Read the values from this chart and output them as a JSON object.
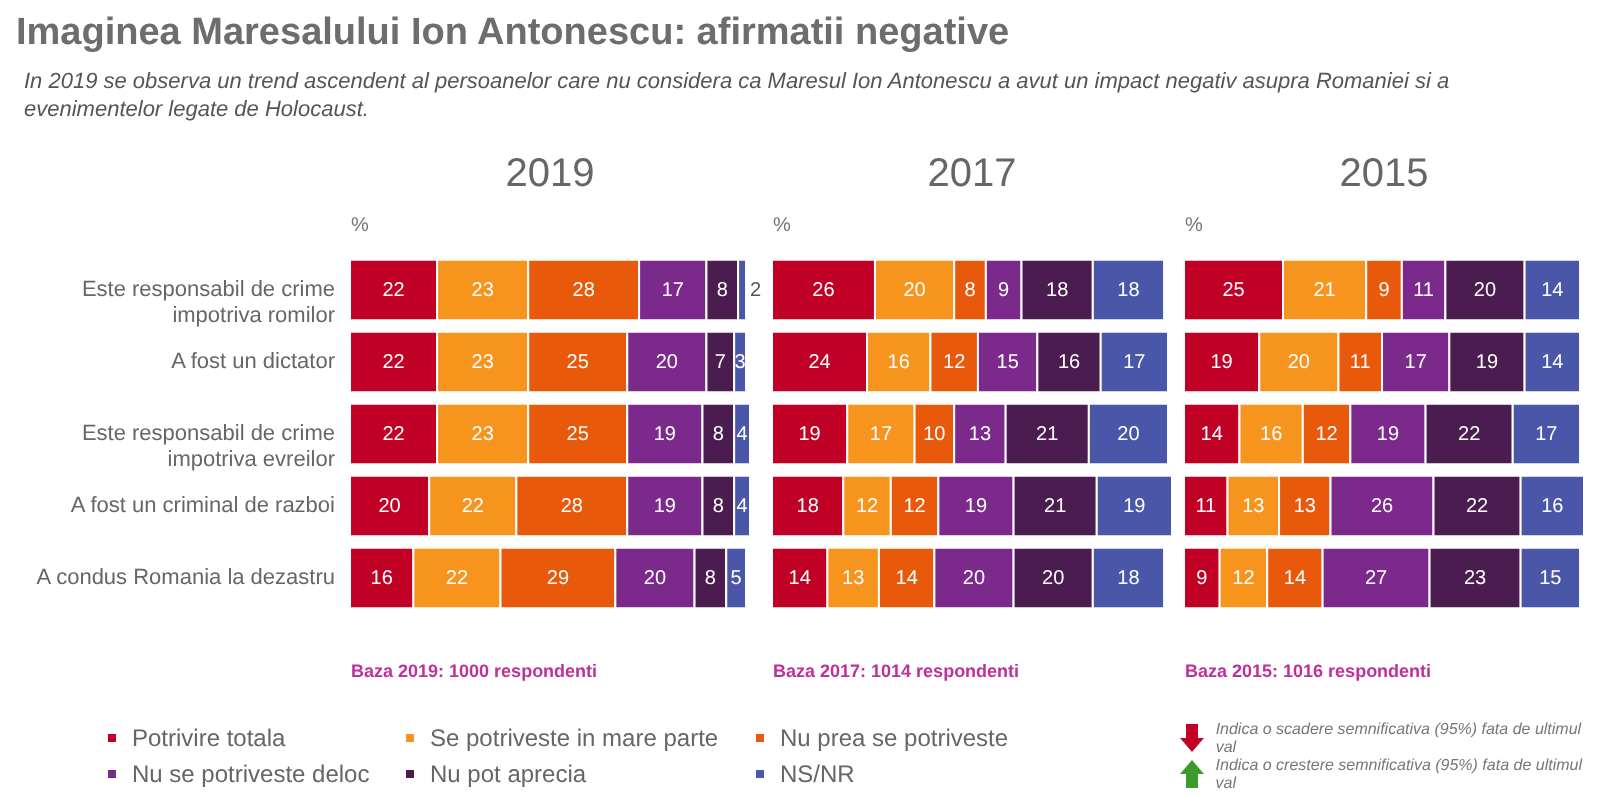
{
  "chart_data": [
    {
      "type": "other",
      "title": "Imaginea Maresalului Ion Antonescu: afirmatii negative",
      "subtitle": "In 2019 se observa un trend ascendent al persoanelor care nu considera ca Maresul Ion Antonescu a avut un impact negativ asupra Romaniei si a evenimentelor legate de Holocaust."
    },
    {
      "type": "bar",
      "orientation": "horizontal",
      "stacked": true,
      "title": "2019",
      "ylabel": "%",
      "tick_labels": "y",
      "data_labels": true,
      "legend": "bottom",
      "annotations": [
        "Baza 2019: 1000 respondenti"
      ],
      "categories": [
        "Este responsabil de crime impotriva romilor",
        "A fost un dictator",
        "Este responsabil de crime impotriva evreilor",
        "A fost un criminal de razboi",
        "A condus Romania la dezastru"
      ],
      "series": [
        {
          "name": "Potrivire totala",
          "color": "#c00025",
          "values": [
            22,
            22,
            22,
            20,
            16
          ]
        },
        {
          "name": "Se potriveste in mare parte",
          "color": "#f7941d",
          "values": [
            23,
            23,
            23,
            22,
            22
          ]
        },
        {
          "name": "Nu prea se potriveste",
          "color": "#e8590c",
          "values": [
            28,
            25,
            25,
            28,
            29
          ]
        },
        {
          "name": "Nu se potriveste deloc",
          "color": "#7b2a8c",
          "values": [
            17,
            20,
            19,
            19,
            20
          ]
        },
        {
          "name": "Nu pot aprecia",
          "color": "#4b1c4f",
          "values": [
            8,
            7,
            8,
            8,
            8
          ]
        },
        {
          "name": "NS/NR",
          "color": "#4a56a8",
          "values": [
            2,
            3,
            4,
            4,
            5
          ]
        }
      ]
    },
    {
      "type": "bar",
      "orientation": "horizontal",
      "stacked": true,
      "title": "2017",
      "ylabel": "%",
      "tick_labels": false,
      "data_labels": true,
      "annotations": [
        "Baza 2017: 1014 respondenti"
      ],
      "categories": [
        null,
        null,
        null,
        null,
        null
      ],
      "series": [
        {
          "color": "#c00025",
          "values": [
            26,
            24,
            19,
            18,
            14
          ]
        },
        {
          "color": "#f7941d",
          "values": [
            20,
            16,
            17,
            12,
            13
          ]
        },
        {
          "color": "#e8590c",
          "values": [
            8,
            12,
            10,
            12,
            14
          ]
        },
        {
          "color": "#7b2a8c",
          "values": [
            9,
            15,
            13,
            19,
            20
          ]
        },
        {
          "color": "#4b1c4f",
          "values": [
            18,
            16,
            21,
            21,
            20
          ]
        },
        {
          "color": "#4a56a8",
          "values": [
            18,
            17,
            20,
            19,
            18
          ]
        }
      ]
    },
    {
      "type": "bar",
      "orientation": "horizontal",
      "stacked": true,
      "title": "2015",
      "ylabel": "%",
      "tick_labels": false,
      "data_labels": true,
      "annotations": [
        "Baza 2015: 1016 respondenti",
        "Indica o scadere semnificativa (95%) fata de ultimul val",
        "Indica o crestere semnificativa (95%) fata de ultimul val"
      ],
      "categories": [
        null,
        null,
        null,
        null,
        null
      ],
      "series": [
        {
          "color": "#c00025",
          "values": [
            25,
            19,
            14,
            11,
            9
          ]
        },
        {
          "color": "#f7941d",
          "values": [
            21,
            20,
            16,
            13,
            12
          ]
        },
        {
          "color": "#e8590c",
          "values": [
            9,
            11,
            12,
            13,
            14
          ]
        },
        {
          "color": "#7b2a8c",
          "values": [
            11,
            17,
            19,
            26,
            27
          ]
        },
        {
          "color": "#4b1c4f",
          "values": [
            20,
            19,
            22,
            22,
            23
          ]
        },
        {
          "color": "#4a56a8",
          "values": [
            14,
            14,
            17,
            16,
            15
          ]
        }
      ]
    }
  ]
}
